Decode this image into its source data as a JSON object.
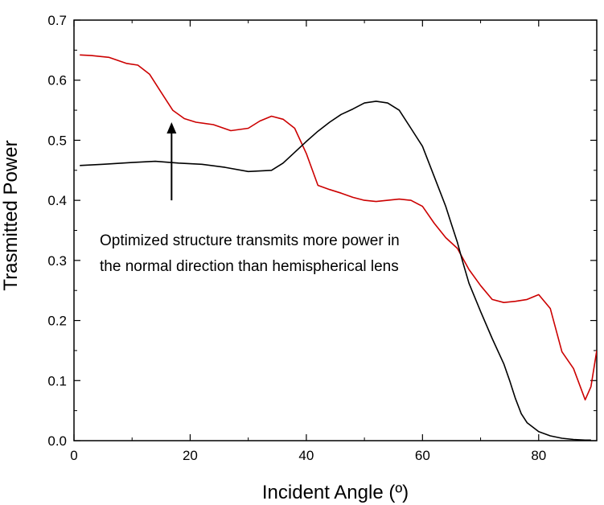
{
  "chart_data": {
    "type": "line",
    "xlabel": "Incident Angle (º)",
    "ylabel": "Trasmitted Power",
    "xlim": [
      0,
      90
    ],
    "ylim": [
      0,
      0.7
    ],
    "x_ticks": [
      0,
      20,
      40,
      60,
      80
    ],
    "y_ticks": [
      0.0,
      0.1,
      0.2,
      0.3,
      0.4,
      0.5,
      0.6,
      0.7
    ],
    "x_tick_labels": [
      "0",
      "20",
      "40",
      "60",
      "80"
    ],
    "y_tick_labels": [
      "0.0",
      "0.1",
      "0.2",
      "0.3",
      "0.4",
      "0.5",
      "0.6",
      "0.7"
    ],
    "grid": false,
    "series": [
      {
        "color": "#cc0000",
        "x": [
          1,
          3,
          6,
          9,
          11,
          13,
          15,
          17,
          19,
          21,
          24,
          27,
          30,
          32,
          34,
          36,
          38,
          40,
          42,
          44,
          46,
          48,
          50,
          52,
          54,
          56,
          58,
          60,
          62,
          64,
          66,
          68,
          70,
          72,
          74,
          76,
          78,
          80,
          82,
          84,
          86,
          88,
          89,
          90
        ],
        "y": [
          0.642,
          0.641,
          0.638,
          0.628,
          0.625,
          0.61,
          0.58,
          0.55,
          0.536,
          0.53,
          0.526,
          0.516,
          0.52,
          0.532,
          0.54,
          0.535,
          0.52,
          0.478,
          0.425,
          0.418,
          0.412,
          0.405,
          0.4,
          0.398,
          0.4,
          0.402,
          0.4,
          0.39,
          0.362,
          0.338,
          0.32,
          0.285,
          0.258,
          0.235,
          0.23,
          0.232,
          0.235,
          0.243,
          0.22,
          0.148,
          0.12,
          0.068,
          0.09,
          0.15
        ]
      },
      {
        "color": "#000000",
        "x": [
          1,
          5,
          10,
          14,
          18,
          22,
          26,
          30,
          34,
          36,
          38,
          40,
          42,
          44,
          46,
          48,
          50,
          52,
          54,
          56,
          58,
          60,
          62,
          63,
          64,
          65,
          66,
          67,
          68,
          70,
          72,
          74,
          75,
          76,
          77,
          78,
          80,
          82,
          84,
          86,
          88,
          89
        ],
        "y": [
          0.458,
          0.46,
          0.463,
          0.465,
          0.462,
          0.46,
          0.455,
          0.448,
          0.45,
          0.462,
          0.48,
          0.498,
          0.515,
          0.53,
          0.543,
          0.552,
          0.562,
          0.565,
          0.562,
          0.55,
          0.52,
          0.49,
          0.44,
          0.415,
          0.39,
          0.36,
          0.33,
          0.295,
          0.262,
          0.215,
          0.17,
          0.128,
          0.1,
          0.07,
          0.045,
          0.03,
          0.015,
          0.008,
          0.004,
          0.002,
          0.001,
          0.001
        ]
      }
    ],
    "annotation": {
      "lines": [
        "Optimized structure transmits more power in",
        "the normal direction than hemispherical lens"
      ],
      "arrow_from": [
        16.8,
        0.4
      ],
      "arrow_to": [
        16.8,
        0.53
      ]
    }
  }
}
